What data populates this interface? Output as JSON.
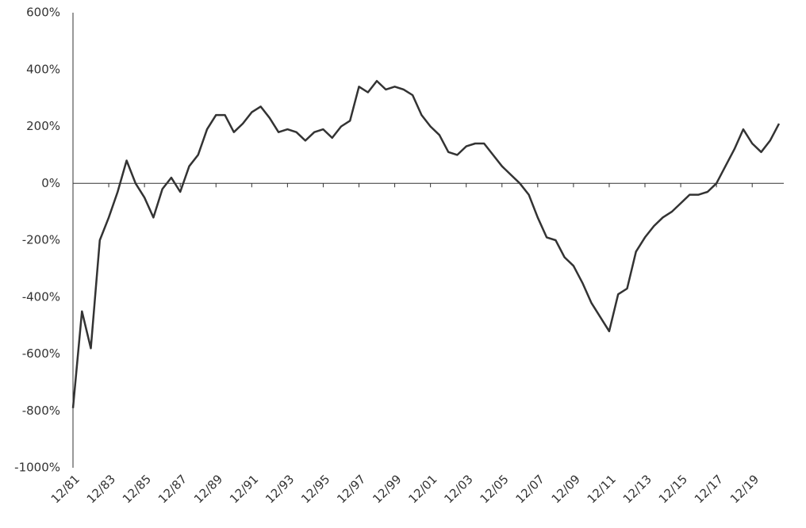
{
  "chart_data": {
    "type": "line",
    "categories": [
      "12/81",
      null,
      null,
      null,
      "12/83",
      null,
      null,
      null,
      "12/85",
      null,
      null,
      null,
      "12/87",
      null,
      null,
      null,
      "12/89",
      null,
      null,
      null,
      "12/91",
      null,
      null,
      null,
      "12/93",
      null,
      null,
      null,
      "12/95",
      null,
      null,
      null,
      "12/97",
      null,
      null,
      null,
      "12/99",
      null,
      null,
      null,
      "12/01",
      null,
      null,
      null,
      "12/03",
      null,
      null,
      null,
      "12/05",
      null,
      null,
      null,
      "12/07",
      null,
      null,
      null,
      "12/09",
      null,
      null,
      null,
      "12/11",
      null,
      null,
      null,
      "12/13",
      null,
      null,
      null,
      "12/15",
      null,
      null,
      null,
      "12/17",
      null,
      null,
      null,
      "12/19",
      null,
      null,
      null
    ],
    "series": [
      {
        "color": "#333333",
        "values": [
          -790,
          -450,
          -580,
          -200,
          -120,
          -30,
          80,
          0,
          -50,
          -120,
          -20,
          20,
          -30,
          60,
          100,
          190,
          240,
          240,
          180,
          210,
          250,
          270,
          230,
          180,
          190,
          180,
          150,
          180,
          190,
          160,
          200,
          220,
          340,
          320,
          360,
          330,
          340,
          330,
          310,
          240,
          200,
          170,
          110,
          100,
          130,
          140,
          140,
          100,
          60,
          30,
          0,
          -40,
          -120,
          -190,
          -200,
          -260,
          -290,
          -350,
          -420,
          -470,
          -520,
          -390,
          -370,
          -240,
          -190,
          -150,
          -120,
          -100,
          -70,
          -40,
          -40,
          -30,
          0,
          60,
          120,
          190,
          140,
          110,
          150,
          210
        ]
      }
    ],
    "ylim": [
      -1000,
      600
    ],
    "yticks": [
      {
        "value": -1000,
        "label": "-1000%"
      },
      {
        "value": -800,
        "label": "-800%"
      },
      {
        "value": -600,
        "label": "-600%"
      },
      {
        "value": -400,
        "label": "-400%"
      },
      {
        "value": -200,
        "label": "-200%"
      },
      {
        "value": 0,
        "label": "0%"
      },
      {
        "value": 200,
        "label": "200%"
      },
      {
        "value": 400,
        "label": "400%"
      },
      {
        "value": 600,
        "label": "600%"
      }
    ]
  }
}
